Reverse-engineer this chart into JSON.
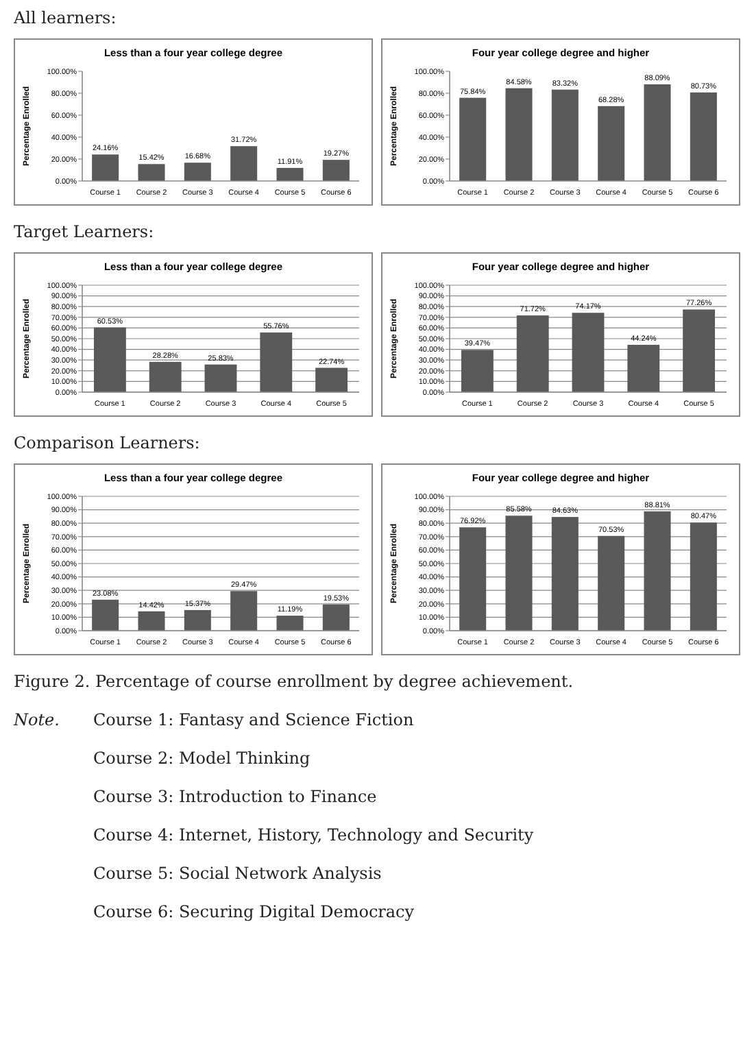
{
  "chart_data": [
    {
      "type": "bar",
      "title": "Less than a four year college degree",
      "ylabel": "Percentage Enrolled",
      "annotations": [
        "All learners:"
      ],
      "categories": [
        "Course 1",
        "Course 2",
        "Course 3",
        "Course 4",
        "Course 5",
        "Course 6"
      ],
      "values": [
        24.16,
        15.42,
        16.68,
        31.72,
        11.91,
        19.27
      ],
      "value_labels": [
        "24.16%",
        "15.42%",
        "16.68%",
        "31.72%",
        "11.91%",
        "19.27%"
      ],
      "color": "#595959",
      "ylim": [
        0,
        100
      ],
      "yticks": [
        {
          "value": 0,
          "label": "0.00%"
        },
        {
          "value": 20,
          "label": "20.00%"
        },
        {
          "value": 40,
          "label": "40.00%"
        },
        {
          "value": 60,
          "label": "60.00%"
        },
        {
          "value": 80,
          "label": "80.00%"
        },
        {
          "value": 100,
          "label": "100.00%"
        }
      ],
      "grid": false
    },
    {
      "type": "bar",
      "title": "Four year college degree and higher",
      "ylabel": "Percentage Enrolled",
      "categories": [
        "Course 1",
        "Course 2",
        "Course 3",
        "Course 4",
        "Course 5",
        "Course 6"
      ],
      "values": [
        75.84,
        84.58,
        83.32,
        68.28,
        88.09,
        80.73
      ],
      "value_labels": [
        "75.84%",
        "84.58%",
        "83.32%",
        "68.28%",
        "88.09%",
        "80.73%"
      ],
      "color": "#595959",
      "ylim": [
        0,
        100
      ],
      "yticks": [
        {
          "value": 0,
          "label": "0.00%"
        },
        {
          "value": 20,
          "label": "20.00%"
        },
        {
          "value": 40,
          "label": "40.00%"
        },
        {
          "value": 60,
          "label": "60.00%"
        },
        {
          "value": 80,
          "label": "80.00%"
        },
        {
          "value": 100,
          "label": "100.00%"
        }
      ],
      "grid": false
    },
    {
      "type": "bar",
      "title": "Less than a four year college degree",
      "ylabel": "Percentage Enrolled",
      "annotations": [
        "Target Learners:"
      ],
      "categories": [
        "Course 1",
        "Course 2",
        "Course 3",
        "Course 4",
        "Course 5"
      ],
      "values": [
        60.53,
        28.28,
        25.83,
        55.76,
        22.74
      ],
      "value_labels": [
        "60.53%",
        "28.28%",
        "25.83%",
        "55.76%",
        "22.74%"
      ],
      "color": "#595959",
      "ylim": [
        0,
        100
      ],
      "yticks": [
        {
          "value": 0,
          "label": "0.00%"
        },
        {
          "value": 10,
          "label": "10.00%"
        },
        {
          "value": 20,
          "label": "20.00%"
        },
        {
          "value": 30,
          "label": "30.00%"
        },
        {
          "value": 40,
          "label": "40.00%"
        },
        {
          "value": 50,
          "label": "50.00%"
        },
        {
          "value": 60,
          "label": "60.00%"
        },
        {
          "value": 70,
          "label": "70.00%"
        },
        {
          "value": 80,
          "label": "80.00%"
        },
        {
          "value": 90,
          "label": "90.00%"
        },
        {
          "value": 100,
          "label": "100.00%"
        }
      ],
      "grid": "y"
    },
    {
      "type": "bar",
      "title": "Four year college degree and higher",
      "ylabel": "Percentage Enrolled",
      "categories": [
        "Course 1",
        "Course 2",
        "Course 3",
        "Course 4",
        "Course 5"
      ],
      "values": [
        39.47,
        71.72,
        74.17,
        44.24,
        77.26
      ],
      "value_labels": [
        "39.47%",
        "71.72%",
        "74.17%",
        "44.24%",
        "77.26%"
      ],
      "color": "#595959",
      "ylim": [
        0,
        100
      ],
      "yticks": [
        {
          "value": 0,
          "label": "0.00%"
        },
        {
          "value": 10,
          "label": "10.00%"
        },
        {
          "value": 20,
          "label": "20.00%"
        },
        {
          "value": 30,
          "label": "30.00%"
        },
        {
          "value": 40,
          "label": "40.00%"
        },
        {
          "value": 50,
          "label": "50.00%"
        },
        {
          "value": 60,
          "label": "60.00%"
        },
        {
          "value": 70,
          "label": "70.00%"
        },
        {
          "value": 80,
          "label": "80.00%"
        },
        {
          "value": 90,
          "label": "90.00%"
        },
        {
          "value": 100,
          "label": "100.00%"
        }
      ],
      "grid": "y"
    },
    {
      "type": "bar",
      "title": "Less than a four year college degree",
      "ylabel": "Percentage Enrolled",
      "annotations": [
        "Comparison Learners:"
      ],
      "categories": [
        "Course 1",
        "Course 2",
        "Course 3",
        "Course 4",
        "Course 5",
        "Course 6"
      ],
      "values": [
        23.08,
        14.42,
        15.37,
        29.47,
        11.19,
        19.53
      ],
      "value_labels": [
        "23.08%",
        "14.42%",
        "15.37%",
        "29.47%",
        "11.19%",
        "19.53%"
      ],
      "color": "#595959",
      "ylim": [
        0,
        100
      ],
      "yticks": [
        {
          "value": 0,
          "label": "0.00%"
        },
        {
          "value": 10,
          "label": "10.00%"
        },
        {
          "value": 20,
          "label": "20.00%"
        },
        {
          "value": 30,
          "label": "30.00%"
        },
        {
          "value": 40,
          "label": "40.00%"
        },
        {
          "value": 50,
          "label": "50.00%"
        },
        {
          "value": 60,
          "label": "60.00%"
        },
        {
          "value": 70,
          "label": "70.00%"
        },
        {
          "value": 80,
          "label": "80.00%"
        },
        {
          "value": 90,
          "label": "90.00%"
        },
        {
          "value": 100,
          "label": "100.00%"
        }
      ],
      "grid": "y"
    },
    {
      "type": "bar",
      "title": "Four year college degree and higher",
      "ylabel": "Percentage Enrolled",
      "categories": [
        "Course 1",
        "Course 2",
        "Course 3",
        "Course 4",
        "Course 5",
        "Course 6"
      ],
      "values": [
        76.92,
        85.58,
        84.63,
        70.53,
        88.81,
        80.47
      ],
      "value_labels": [
        "76.92%",
        "85.58%",
        "84.63%",
        "70.53%",
        "88.81%",
        "80.47%"
      ],
      "color": "#595959",
      "ylim": [
        0,
        100
      ],
      "yticks": [
        {
          "value": 0,
          "label": "0.00%"
        },
        {
          "value": 10,
          "label": "10.00%"
        },
        {
          "value": 20,
          "label": "20.00%"
        },
        {
          "value": 30,
          "label": "30.00%"
        },
        {
          "value": 40,
          "label": "40.00%"
        },
        {
          "value": 50,
          "label": "50.00%"
        },
        {
          "value": 60,
          "label": "60.00%"
        },
        {
          "value": 70,
          "label": "70.00%"
        },
        {
          "value": 80,
          "label": "80.00%"
        },
        {
          "value": 90,
          "label": "90.00%"
        },
        {
          "value": 100,
          "label": "100.00%"
        }
      ],
      "grid": "y"
    },
    {
      "type": "other",
      "annotations": [
        "Figure 2. Percentage of course enrollment by degree achievement.",
        "Note.",
        "Course 1: Fantasy and Science Fiction",
        "Course 2: Model Thinking",
        "Course 3: Introduction to Finance",
        "Course 4: Internet, History, Technology and Security",
        "Course 5: Social Network Analysis",
        "Course 6: Securing Digital Democracy"
      ]
    }
  ]
}
